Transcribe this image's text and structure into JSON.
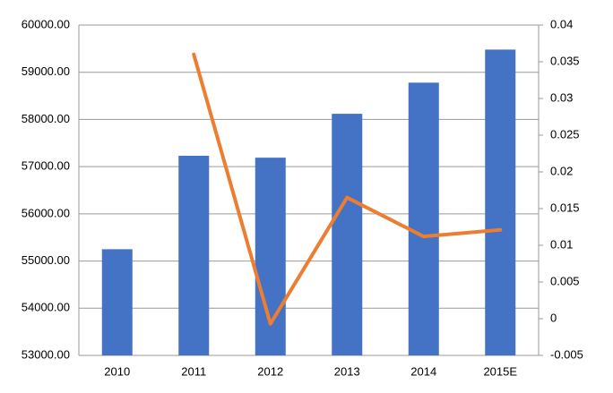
{
  "chart_data": {
    "type": "bar",
    "categories": [
      "2010",
      "2011",
      "2012",
      "2013",
      "2014",
      "2015E"
    ],
    "series": [
      {
        "type": "bar",
        "color": "#4472c4",
        "values": [
          55250,
          57230,
          57190,
          58120,
          58780,
          59480
        ]
      },
      {
        "type": "line",
        "axis": "y2",
        "color": "#ed7d31",
        "values": [
          null,
          0.036,
          -0.0007,
          0.0165,
          0.0112,
          0.0121
        ]
      }
    ],
    "ylim": [
      53000,
      60000
    ],
    "yticks": [
      {
        "value": 53000,
        "label": "53000.00"
      },
      {
        "value": 54000,
        "label": "54000.00"
      },
      {
        "value": 55000,
        "label": "55000.00"
      },
      {
        "value": 56000,
        "label": "56000.00"
      },
      {
        "value": 57000,
        "label": "57000.00"
      },
      {
        "value": 58000,
        "label": "58000.00"
      },
      {
        "value": 59000,
        "label": "59000.00"
      },
      {
        "value": 60000,
        "label": "60000.00"
      }
    ],
    "y2lim": [
      -0.005,
      0.04
    ],
    "y2ticks": [
      -0.005,
      0,
      0.005,
      0.01,
      0.015,
      0.02,
      0.025,
      0.03,
      0.035,
      0.04
    ],
    "grid": true
  }
}
